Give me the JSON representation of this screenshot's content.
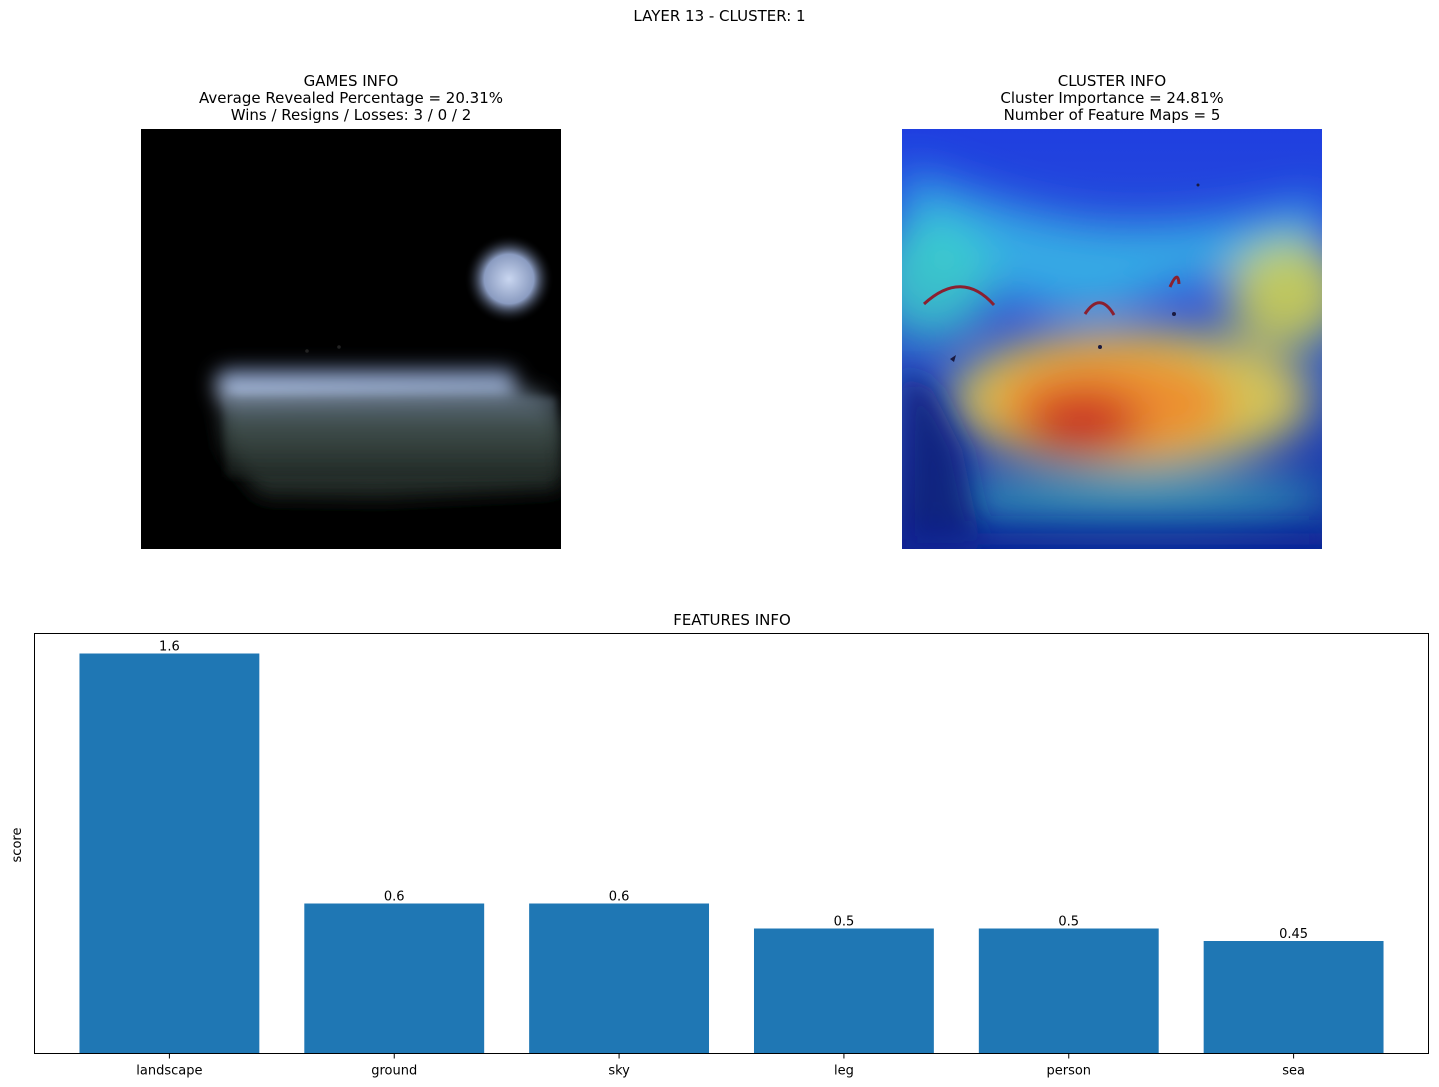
{
  "figure": {
    "title": "LAYER 13 - CLUSTER: 1"
  },
  "games_panel": {
    "title": "GAMES INFO",
    "line1": "Average Revealed Percentage = 20.31%",
    "line2": "Wins / Resigns / Losses: 3 / 0 / 2"
  },
  "cluster_panel": {
    "title": "CLUSTER INFO",
    "line1": "Cluster Importance = 24.81%",
    "line2": "Number of Feature Maps = 5"
  },
  "chart_data": {
    "type": "bar",
    "title": "FEATURES INFO",
    "xlabel": "",
    "ylabel": "score",
    "categories": [
      "landscape",
      "ground",
      "sky",
      "leg",
      "person",
      "sea"
    ],
    "values": [
      1.6,
      0.6,
      0.6,
      0.5,
      0.5,
      0.45
    ],
    "value_labels": [
      "1.6",
      "0.6",
      "0.6",
      "0.5",
      "0.5",
      "0.45"
    ],
    "ylim": [
      0,
      1.68
    ],
    "grid": false,
    "y_ticks_visible": false,
    "bar_color": "#1f77b4"
  }
}
